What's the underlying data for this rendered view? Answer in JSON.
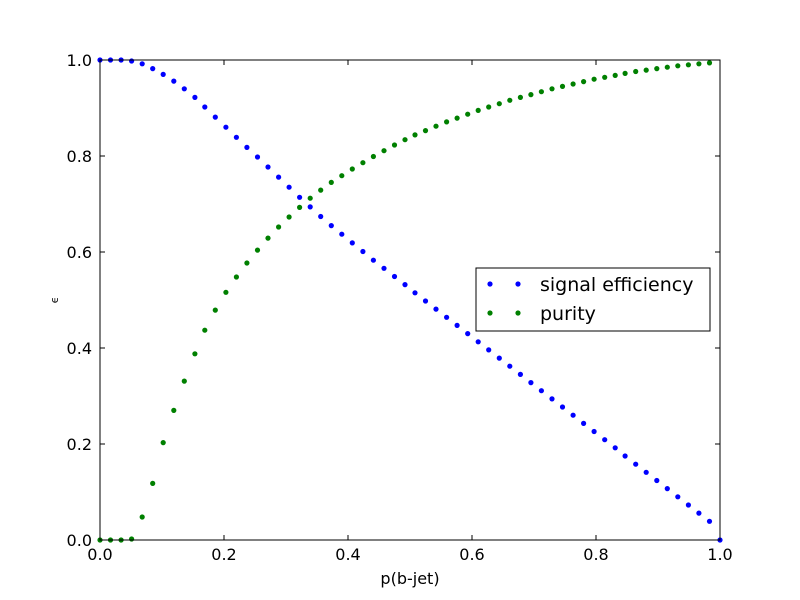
{
  "chart_data": {
    "type": "scatter",
    "xlabel": "p(b-jet)",
    "ylabel": "ϵ",
    "xlim": [
      0.0,
      1.0
    ],
    "ylim": [
      0.0,
      1.0
    ],
    "xticks": [
      "0.0",
      "0.2",
      "0.4",
      "0.6",
      "0.8",
      "1.0"
    ],
    "yticks": [
      "0.0",
      "0.2",
      "0.4",
      "0.6",
      "0.8",
      "1.0"
    ],
    "grid": false,
    "legend_position": "center-right",
    "series": [
      {
        "name": "signal efficiency",
        "color": "#0000ff",
        "x": [
          0.0,
          0.017,
          0.034,
          0.051,
          0.068,
          0.085,
          0.102,
          0.119,
          0.136,
          0.153,
          0.169,
          0.186,
          0.203,
          0.22,
          0.237,
          0.254,
          0.271,
          0.288,
          0.305,
          0.322,
          0.339,
          0.356,
          0.373,
          0.39,
          0.407,
          0.424,
          0.441,
          0.458,
          0.475,
          0.492,
          0.508,
          0.525,
          0.542,
          0.559,
          0.576,
          0.593,
          0.61,
          0.627,
          0.644,
          0.661,
          0.678,
          0.695,
          0.712,
          0.729,
          0.746,
          0.763,
          0.78,
          0.797,
          0.814,
          0.831,
          0.847,
          0.864,
          0.881,
          0.898,
          0.915,
          0.932,
          0.949,
          0.966,
          0.983,
          1.0
        ],
        "y": [
          1.0,
          1.0,
          1.0,
          0.998,
          0.992,
          0.982,
          0.97,
          0.956,
          0.94,
          0.922,
          0.902,
          0.881,
          0.86,
          0.839,
          0.818,
          0.798,
          0.777,
          0.756,
          0.735,
          0.714,
          0.694,
          0.674,
          0.655,
          0.637,
          0.619,
          0.601,
          0.583,
          0.566,
          0.549,
          0.532,
          0.515,
          0.498,
          0.481,
          0.464,
          0.447,
          0.43,
          0.413,
          0.396,
          0.379,
          0.362,
          0.345,
          0.328,
          0.311,
          0.294,
          0.277,
          0.26,
          0.243,
          0.226,
          0.209,
          0.192,
          0.175,
          0.158,
          0.141,
          0.124,
          0.107,
          0.09,
          0.073,
          0.056,
          0.039,
          0.0
        ]
      },
      {
        "name": "purity",
        "color": "#008000",
        "x": [
          0.0,
          0.017,
          0.034,
          0.051,
          0.068,
          0.085,
          0.102,
          0.119,
          0.136,
          0.153,
          0.169,
          0.186,
          0.203,
          0.22,
          0.237,
          0.254,
          0.271,
          0.288,
          0.305,
          0.322,
          0.339,
          0.356,
          0.373,
          0.39,
          0.407,
          0.424,
          0.441,
          0.458,
          0.475,
          0.492,
          0.508,
          0.525,
          0.542,
          0.559,
          0.576,
          0.593,
          0.61,
          0.627,
          0.644,
          0.661,
          0.678,
          0.695,
          0.712,
          0.729,
          0.746,
          0.763,
          0.78,
          0.797,
          0.814,
          0.831,
          0.847,
          0.864,
          0.881,
          0.898,
          0.915,
          0.932,
          0.949,
          0.966,
          0.983
        ],
        "y": [
          0.0,
          0.0,
          0.0,
          0.002,
          0.048,
          0.118,
          0.203,
          0.27,
          0.331,
          0.388,
          0.437,
          0.479,
          0.516,
          0.548,
          0.577,
          0.604,
          0.629,
          0.652,
          0.673,
          0.693,
          0.712,
          0.729,
          0.745,
          0.759,
          0.773,
          0.786,
          0.799,
          0.811,
          0.823,
          0.834,
          0.844,
          0.853,
          0.862,
          0.871,
          0.879,
          0.887,
          0.895,
          0.902,
          0.909,
          0.916,
          0.922,
          0.928,
          0.934,
          0.94,
          0.945,
          0.95,
          0.955,
          0.96,
          0.964,
          0.968,
          0.972,
          0.976,
          0.979,
          0.982,
          0.985,
          0.988,
          0.99,
          0.992,
          0.994
        ]
      }
    ]
  }
}
